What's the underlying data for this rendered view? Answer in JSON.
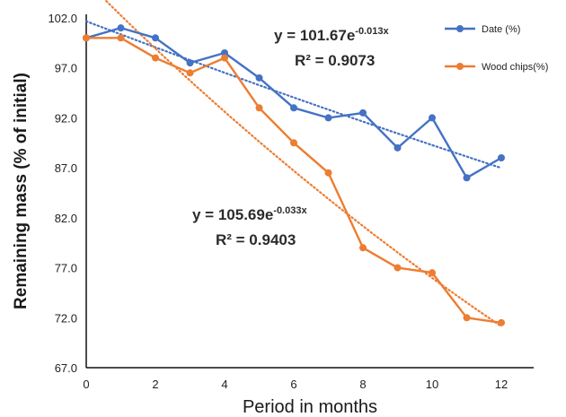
{
  "chart_data": {
    "type": "line",
    "xlabel": "Period in months",
    "ylabel": "Remaining  mass (% of  initial)",
    "xlim": [
      0,
      13
    ],
    "ylim": [
      67.0,
      102.0
    ],
    "xticks": [
      0,
      2,
      4,
      6,
      8,
      10,
      12
    ],
    "yticks": [
      67.0,
      72.0,
      77.0,
      82.0,
      87.0,
      92.0,
      97.0,
      102.0
    ],
    "ytick_labels": [
      "67.0",
      "72.0",
      "77.0",
      "82.0",
      "87.0",
      "92.0",
      "97.0",
      "102.0"
    ],
    "grid": false,
    "legend": "top-right",
    "series": [
      {
        "name": "Date (%)",
        "color": "#4472C4",
        "x": [
          0,
          1,
          2,
          3,
          4,
          5,
          6,
          7,
          8,
          9,
          10,
          11,
          12
        ],
        "y": [
          100.0,
          101.0,
          100.0,
          97.5,
          98.5,
          96.0,
          93.0,
          92.0,
          92.5,
          89.0,
          92.0,
          86.0,
          88.0
        ],
        "trendline": {
          "type": "exponential",
          "a": 101.67,
          "b": -0.013,
          "style": "dotted"
        },
        "equation": {
          "base": "y = 101.67e",
          "exponent": "-0.013x",
          "r2_label": "R² = 0.9073"
        }
      },
      {
        "name": "Wood chips(%)",
        "color": "#ED7D31",
        "x": [
          0,
          1,
          2,
          3,
          4,
          5,
          6,
          7,
          8,
          9,
          10,
          11,
          12
        ],
        "y": [
          100.0,
          100.0,
          98.0,
          96.5,
          98.0,
          93.0,
          89.5,
          86.5,
          79.0,
          77.0,
          76.5,
          72.0,
          71.5
        ],
        "trendline": {
          "type": "exponential",
          "a": 105.69,
          "b": -0.033,
          "style": "dotted"
        },
        "equation": {
          "base": "y = 105.69e",
          "exponent": "-0.033x",
          "r2_label": "R² = 0.9403"
        }
      }
    ]
  }
}
